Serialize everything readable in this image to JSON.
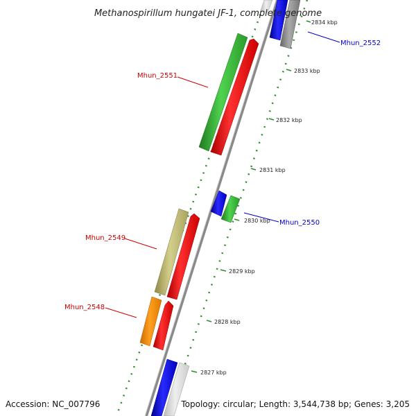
{
  "title": "Methanospirillum hungatei JF-1, complete genome",
  "footer": {
    "accession": "Accession: NC_007796",
    "topology": "Topology: circular; Length: 3,544,738 bp; Genes: 3,205"
  },
  "scale_labels": [
    "2834 kbp",
    "2833 kbp",
    "2832 kbp",
    "2831 kbp",
    "2830 kbp",
    "2829 kbp",
    "2828 kbp",
    "2827 kbp"
  ],
  "gene_labels": [
    {
      "name": "Mhun_2552",
      "color": "#0000cc"
    },
    {
      "name": "Mhun_2551",
      "color": "#cc0000"
    },
    {
      "name": "Mhun_2550",
      "color": "#0000cc"
    },
    {
      "name": "Mhun_2549",
      "color": "#cc0000"
    },
    {
      "name": "Mhun_2548",
      "color": "#cc0000"
    }
  ],
  "colors": {
    "backbone": "#8a8a8a",
    "cds": "#ff0000",
    "gc_ring": "#2e8b2e",
    "green_feature": "#33bb33",
    "blue_feature": "#0000ee",
    "olive_feature": "#bdb76b",
    "orange_feature": "#ff8c00",
    "grey_feature": "#999999"
  }
}
